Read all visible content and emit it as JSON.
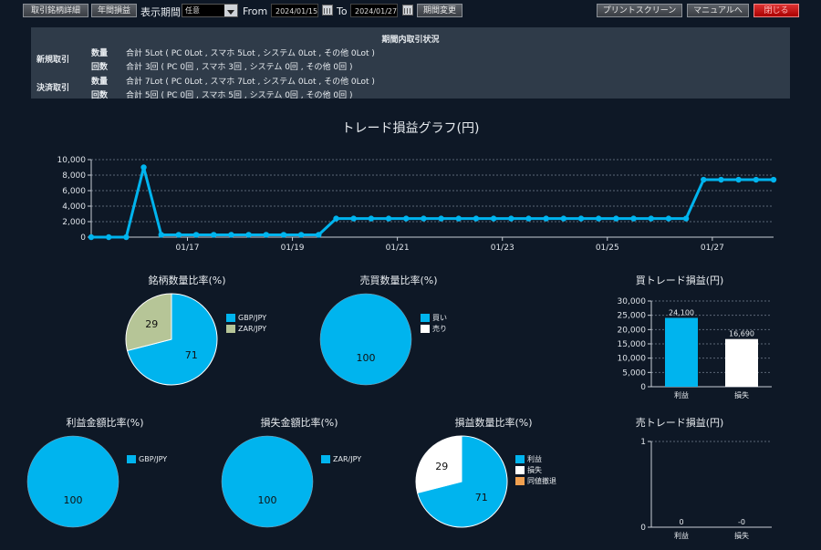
{
  "toolbar": {
    "detail_button": "取引銘柄詳細",
    "annual_button": "年間損益",
    "period_label": "表示期間",
    "period_select": "任意",
    "from_label": "From",
    "from_date": "2024/01/15",
    "to_label": "To",
    "to_date": "2024/01/27",
    "change_button": "期間変更",
    "print_button": "プリントスクリーン",
    "manual_button": "マニュアルへ",
    "close_button": "閉じる"
  },
  "summary": {
    "title": "期間内取引状況",
    "groups": [
      {
        "label": "新規取引",
        "rows": [
          {
            "key": "数量",
            "value": "合計 5Lot ( PC 0Lot , スマホ 5Lot , システム 0Lot , その他 0Lot )"
          },
          {
            "key": "回数",
            "value": "合計 3回 ( PC 0回 , スマホ 3回 , システム 0回 , その他 0回 )"
          }
        ]
      },
      {
        "label": "決済取引",
        "rows": [
          {
            "key": "数量",
            "value": "合計 7Lot ( PC 0Lot , スマホ 7Lot , システム 0Lot , その他 0Lot )"
          },
          {
            "key": "回数",
            "value": "合計 5回 ( PC 0回 , スマホ 5回 , システム 0回 , その他 0回 )"
          }
        ]
      }
    ]
  },
  "colors": {
    "accent": "#00b4ee",
    "grey_green": "#b6c597",
    "white": "#ffffff",
    "orange": "#f0a050",
    "background": "#0e1826",
    "panel": "#2f3b49"
  },
  "chart_data": [
    {
      "type": "line",
      "title": "トレード損益グラフ(円)",
      "ylim": [
        0,
        10000
      ],
      "yticks": [
        "0",
        "2,000",
        "4,000",
        "6,000",
        "8,000",
        "10,000"
      ],
      "xtick_labels": [
        "01/17",
        "01/19",
        "01/21",
        "01/23",
        "01/25",
        "01/27"
      ],
      "grid": true,
      "series": [
        {
          "values": [
            0,
            0,
            0,
            9000,
            300,
            300,
            300,
            300,
            300,
            300,
            300,
            300,
            300,
            300,
            2400,
            2400,
            2400,
            2400,
            2400,
            2400,
            2400,
            2400,
            2400,
            2400,
            2400,
            2400,
            2400,
            2400,
            2400,
            2400,
            2400,
            2400,
            2400,
            2400,
            2400,
            7410,
            7410,
            7410,
            7410,
            7410
          ]
        }
      ]
    },
    {
      "type": "pie",
      "title": "銘柄数量比率(%)",
      "slices": [
        {
          "label": "GBP/JPY",
          "value": 71
        },
        {
          "label": "ZAR/JPY",
          "value": 29
        }
      ]
    },
    {
      "type": "pie",
      "title": "売買数量比率(%)",
      "slices": [
        {
          "label": "買い",
          "value": 100
        },
        {
          "label": "売り",
          "value": 0
        }
      ]
    },
    {
      "type": "bar",
      "title": "買トレード損益(円)",
      "categories": [
        "利益",
        "損失"
      ],
      "values": [
        24100,
        16690
      ],
      "value_labels": [
        "24,100",
        "16,690"
      ],
      "ylim": [
        0,
        30000
      ],
      "yticks": [
        "0",
        "5,000",
        "10,000",
        "15,000",
        "20,000",
        "25,000",
        "30,000"
      ]
    },
    {
      "type": "pie",
      "title": "利益金額比率(%)",
      "slices": [
        {
          "label": "GBP/JPY",
          "value": 100
        }
      ]
    },
    {
      "type": "pie",
      "title": "損失金額比率(%)",
      "slices": [
        {
          "label": "ZAR/JPY",
          "value": 100
        }
      ]
    },
    {
      "type": "pie",
      "title": "損益数量比率(%)",
      "slices": [
        {
          "label": "利益",
          "value": 71
        },
        {
          "label": "損失",
          "value": 29
        },
        {
          "label": "同値撤退",
          "value": 0
        }
      ]
    },
    {
      "type": "bar",
      "title": "売トレード損益(円)",
      "categories": [
        "利益",
        "損失"
      ],
      "values": [
        0,
        0
      ],
      "value_labels": [
        "0",
        "-0"
      ],
      "ylim": [
        0,
        1
      ],
      "yticks": [
        "0",
        "1"
      ]
    }
  ]
}
